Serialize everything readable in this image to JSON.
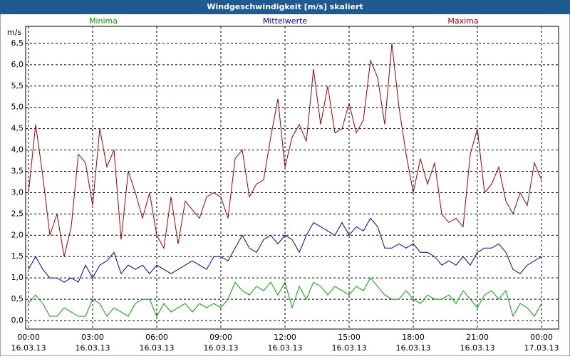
{
  "chart_data": {
    "type": "line",
    "title": "Windgeschwindigkeit [m/s] skaliert",
    "y_label": "m/s",
    "grid": true,
    "xlim": [
      -8,
      1488
    ],
    "ylim": [
      -0.2,
      6.9
    ],
    "xticks": [
      {
        "value": 0,
        "label": "00:00",
        "date": "16.03.13"
      },
      {
        "value": 180,
        "label": "03:00",
        "date": "16.03.13"
      },
      {
        "value": 360,
        "label": "06:00",
        "date": "16.03.13"
      },
      {
        "value": 540,
        "label": "09:00",
        "date": "16.03.13"
      },
      {
        "value": 720,
        "label": "12:00",
        "date": "16.03.13"
      },
      {
        "value": 900,
        "label": "15:00",
        "date": "16.03.13"
      },
      {
        "value": 1080,
        "label": "18:00",
        "date": "16.03.13"
      },
      {
        "value": 1260,
        "label": "21:00",
        "date": "16.03.13"
      },
      {
        "value": 1440,
        "label": "00:00",
        "date": "17.03.13"
      }
    ],
    "yticks": [
      {
        "value": 0,
        "label": "0,0"
      },
      {
        "value": 0.5,
        "label": "0,5"
      },
      {
        "value": 1,
        "label": "1,0"
      },
      {
        "value": 1.5,
        "label": "1,5"
      },
      {
        "value": 2,
        "label": "2,0"
      },
      {
        "value": 2.5,
        "label": "2,5"
      },
      {
        "value": 3,
        "label": "3,0"
      },
      {
        "value": 3.5,
        "label": "3,5"
      },
      {
        "value": 4,
        "label": "4,0"
      },
      {
        "value": 4.5,
        "label": "4,5"
      },
      {
        "value": 5,
        "label": "5,0"
      },
      {
        "value": 5.5,
        "label": "5,5"
      },
      {
        "value": 6,
        "label": "6,0"
      },
      {
        "value": 6.5,
        "label": "6,5"
      }
    ],
    "x": [
      0,
      20,
      40,
      60,
      80,
      100,
      120,
      140,
      160,
      180,
      200,
      220,
      240,
      260,
      280,
      300,
      320,
      340,
      360,
      380,
      400,
      420,
      440,
      460,
      480,
      500,
      520,
      540,
      560,
      580,
      600,
      620,
      640,
      660,
      680,
      700,
      720,
      740,
      760,
      780,
      800,
      820,
      840,
      860,
      880,
      900,
      920,
      940,
      960,
      980,
      1000,
      1020,
      1040,
      1060,
      1080,
      1100,
      1120,
      1140,
      1160,
      1180,
      1200,
      1220,
      1240,
      1260,
      1280,
      1300,
      1320,
      1340,
      1360,
      1380,
      1400,
      1420,
      1440
    ],
    "series": [
      {
        "name": "Minima",
        "color": "#00a000",
        "values": [
          0.4,
          0.6,
          0.4,
          0.1,
          0.1,
          0.3,
          0.2,
          0.1,
          0.1,
          0.5,
          0.4,
          0.1,
          0.3,
          0.2,
          0.1,
          0.4,
          0.5,
          0.5,
          0.1,
          0.4,
          0.2,
          0.3,
          0.4,
          0.2,
          0.4,
          0.3,
          0.4,
          0.3,
          0.5,
          0.9,
          0.7,
          0.6,
          0.8,
          0.7,
          0.9,
          0.6,
          0.9,
          0.3,
          0.8,
          0.5,
          0.9,
          0.8,
          0.6,
          0.8,
          0.7,
          0.6,
          0.8,
          0.7,
          1.0,
          0.8,
          0.6,
          0.5,
          0.5,
          0.7,
          0.5,
          0.4,
          0.6,
          0.5,
          0.5,
          0.6,
          0.4,
          0.7,
          0.5,
          0.3,
          0.6,
          0.7,
          0.5,
          0.7,
          0.1,
          0.4,
          0.3,
          0.1,
          0.4
        ]
      },
      {
        "name": "Mittelwerte",
        "color": "#0000a0",
        "values": [
          1.2,
          1.5,
          1.2,
          1.0,
          1.0,
          0.9,
          1.0,
          0.9,
          1.3,
          1.0,
          1.3,
          1.4,
          1.6,
          1.1,
          1.3,
          1.2,
          1.3,
          1.1,
          1.3,
          1.2,
          1.1,
          1.2,
          1.3,
          1.4,
          1.3,
          1.2,
          1.5,
          1.5,
          1.4,
          1.7,
          2.0,
          1.7,
          1.6,
          1.9,
          2.0,
          1.8,
          2.0,
          1.9,
          1.6,
          2.0,
          2.3,
          2.2,
          2.1,
          2.0,
          2.3,
          2.0,
          2.2,
          2.1,
          2.4,
          2.2,
          1.7,
          1.7,
          1.8,
          1.7,
          1.8,
          1.6,
          1.6,
          1.5,
          1.3,
          1.4,
          1.3,
          1.5,
          1.3,
          1.6,
          1.7,
          1.7,
          1.8,
          1.6,
          1.2,
          1.1,
          1.3,
          1.4,
          1.5
        ]
      },
      {
        "name": "Maxima",
        "color": "#a00000",
        "values": [
          3.0,
          4.6,
          3.4,
          2.0,
          2.5,
          1.5,
          2.2,
          3.9,
          3.7,
          2.7,
          4.5,
          3.6,
          4.0,
          1.9,
          3.5,
          3.0,
          2.4,
          3.0,
          2.0,
          1.7,
          2.9,
          1.8,
          2.8,
          2.6,
          2.4,
          2.9,
          3.0,
          2.9,
          2.4,
          3.8,
          4.0,
          2.9,
          3.2,
          3.3,
          4.3,
          5.2,
          3.6,
          4.3,
          4.6,
          4.2,
          5.9,
          4.6,
          5.5,
          4.4,
          4.5,
          5.1,
          4.4,
          4.7,
          6.1,
          5.7,
          4.6,
          6.5,
          5.0,
          3.9,
          3.0,
          3.8,
          3.2,
          3.7,
          2.5,
          2.3,
          2.4,
          2.2,
          3.9,
          4.5,
          3.0,
          3.2,
          3.6,
          2.8,
          2.5,
          3.0,
          2.7,
          3.7,
          3.3
        ]
      }
    ]
  }
}
